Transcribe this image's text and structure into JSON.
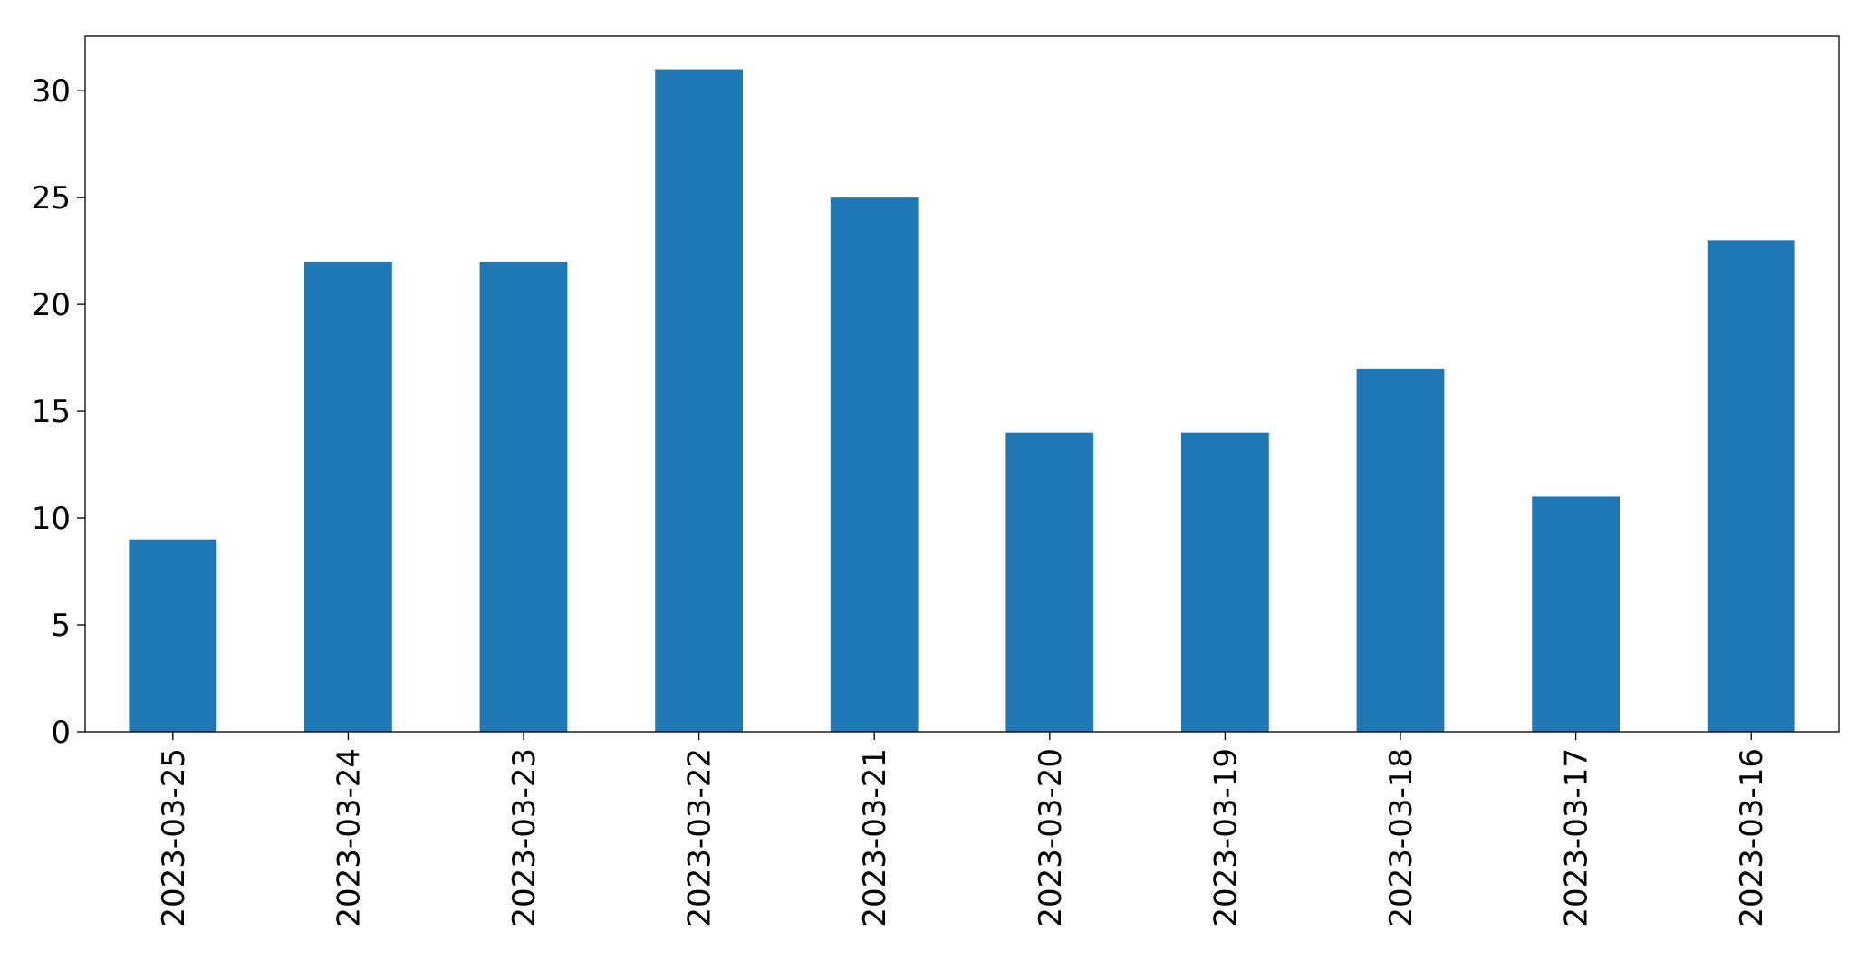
{
  "chart_data": {
    "type": "bar",
    "categories": [
      "2023-03-25",
      "2023-03-24",
      "2023-03-23",
      "2023-03-22",
      "2023-03-21",
      "2023-03-20",
      "2023-03-19",
      "2023-03-18",
      "2023-03-17",
      "2023-03-16"
    ],
    "values": [
      9,
      22,
      22,
      31,
      25,
      14,
      14,
      17,
      11,
      23
    ],
    "color": "#1f77b4",
    "ylim": [
      0,
      32.55
    ],
    "yticks": [
      0,
      5,
      10,
      15,
      20,
      25,
      30
    ],
    "grid": false
  }
}
